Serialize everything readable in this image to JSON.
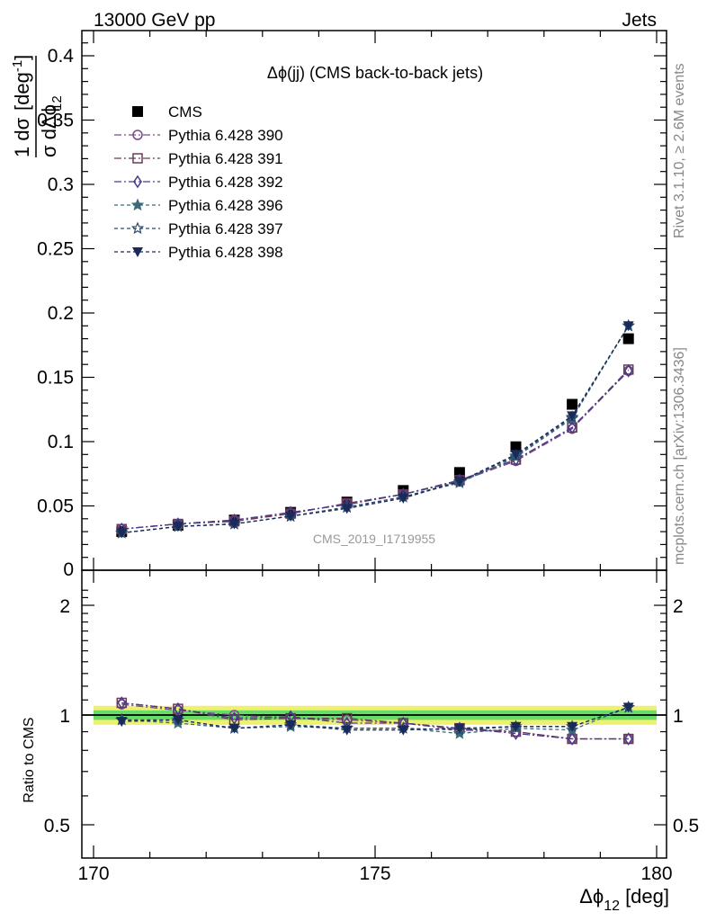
{
  "header": {
    "left": "13000 GeV pp",
    "right": "Jets"
  },
  "side_labels": {
    "rivet": "Rivet 3.1.10, ≥ 2.6M events",
    "mcplots": "mcplots.cern.ch [arXiv:1306.3436]"
  },
  "main_panel": {
    "title": "Δϕ(jj) (CMS back-to-back jets)",
    "ylabel_frac_num": "1  dσ",
    "ylabel_frac_den": "σ dΔϕ",
    "ylabel_sub": "12",
    "ylabel_unit": "[deg",
    "ylabel_unit_sup": "-1",
    "ylabel_unit_close": "]",
    "watermark": "CMS_2019_I1719955",
    "yticks": [
      "0",
      "0.05",
      "0.1",
      "0.15",
      "0.2",
      "0.25",
      "0.3",
      "0.35",
      "0.4"
    ]
  },
  "ratio_panel": {
    "ylabel": "Ratio to CMS",
    "yticks": [
      "0.5",
      "1",
      "2"
    ],
    "yticks_right": [
      "0.5",
      "1",
      "2"
    ]
  },
  "x_axis": {
    "ticks": [
      "170",
      "175",
      "180"
    ],
    "label": "Δϕ",
    "label_sub": "12",
    "label_unit": "[deg]"
  },
  "colors": {
    "cms": "#000000",
    "p390": "#7a4a8a",
    "p391": "#6b3a5a",
    "p392": "#4a3a8a",
    "p396": "#3a6a7a",
    "p397": "#2a4a6a",
    "p398": "#1a2a5a",
    "band_inner": "#66dd66",
    "band_outer": "#f0f070"
  },
  "chart_data": {
    "type": "scatter",
    "xlim": [
      170,
      180
    ],
    "ylim": [
      0,
      0.42
    ],
    "ratio_ylim": [
      0.4,
      2.3
    ],
    "ratio_scale": "log",
    "legend_position": "top-left",
    "grid": false,
    "x": [
      170.5,
      171.5,
      172.5,
      173.5,
      174.5,
      175.5,
      176.5,
      177.5,
      178.5,
      179.5
    ],
    "series": [
      {
        "name": "CMS",
        "marker": "square-filled",
        "values": [
          0.03,
          0.035,
          0.039,
          0.045,
          0.053,
          0.062,
          0.076,
          0.096,
          0.129,
          0.18
        ]
      },
      {
        "name": "Pythia 6.428 390",
        "marker": "circle-open",
        "values": [
          0.032,
          0.036,
          0.039,
          0.044,
          0.052,
          0.059,
          0.069,
          0.085,
          0.11,
          0.155
        ]
      },
      {
        "name": "Pythia 6.428 391",
        "marker": "square-open",
        "values": [
          0.032,
          0.036,
          0.038,
          0.044,
          0.052,
          0.059,
          0.07,
          0.086,
          0.111,
          0.156
        ]
      },
      {
        "name": "Pythia 6.428 392",
        "marker": "diamond-open",
        "values": [
          0.032,
          0.036,
          0.039,
          0.045,
          0.051,
          0.059,
          0.07,
          0.086,
          0.111,
          0.155
        ]
      },
      {
        "name": "Pythia 6.428 396",
        "marker": "star-filled",
        "values": [
          0.029,
          0.034,
          0.036,
          0.042,
          0.049,
          0.057,
          0.068,
          0.088,
          0.118,
          0.19
        ]
      },
      {
        "name": "Pythia 6.428 397",
        "marker": "star-open",
        "values": [
          0.029,
          0.034,
          0.036,
          0.042,
          0.049,
          0.057,
          0.069,
          0.089,
          0.119,
          0.19
        ]
      },
      {
        "name": "Pythia 6.428 398",
        "marker": "triangle-down-filled",
        "values": [
          0.029,
          0.034,
          0.036,
          0.042,
          0.048,
          0.056,
          0.069,
          0.09,
          0.12,
          0.19
        ]
      }
    ],
    "ratio_series": [
      {
        "name": "Pythia 6.428 390",
        "values": [
          1.07,
          1.03,
          1.0,
          0.98,
          0.97,
          0.95,
          0.91,
          0.9,
          0.86,
          0.86
        ]
      },
      {
        "name": "Pythia 6.428 391",
        "values": [
          1.08,
          1.04,
          0.97,
          0.98,
          0.98,
          0.95,
          0.92,
          0.9,
          0.86,
          0.86
        ]
      },
      {
        "name": "Pythia 6.428 392",
        "values": [
          1.08,
          1.04,
          0.98,
          0.99,
          0.95,
          0.95,
          0.92,
          0.89,
          0.86,
          0.86
        ]
      },
      {
        "name": "Pythia 6.428 396",
        "values": [
          0.97,
          0.95,
          0.92,
          0.93,
          0.92,
          0.92,
          0.89,
          0.92,
          0.91,
          1.05
        ]
      },
      {
        "name": "Pythia 6.428 397",
        "values": [
          0.97,
          0.97,
          0.92,
          0.94,
          0.92,
          0.92,
          0.91,
          0.93,
          0.93,
          1.05
        ]
      },
      {
        "name": "Pythia 6.428 398",
        "values": [
          0.96,
          0.97,
          0.92,
          0.94,
          0.91,
          0.91,
          0.92,
          0.93,
          0.93,
          1.05
        ]
      }
    ],
    "ratio_band_inner": [
      0.97,
      1.03
    ],
    "ratio_band_outer": [
      0.94,
      1.06
    ]
  }
}
